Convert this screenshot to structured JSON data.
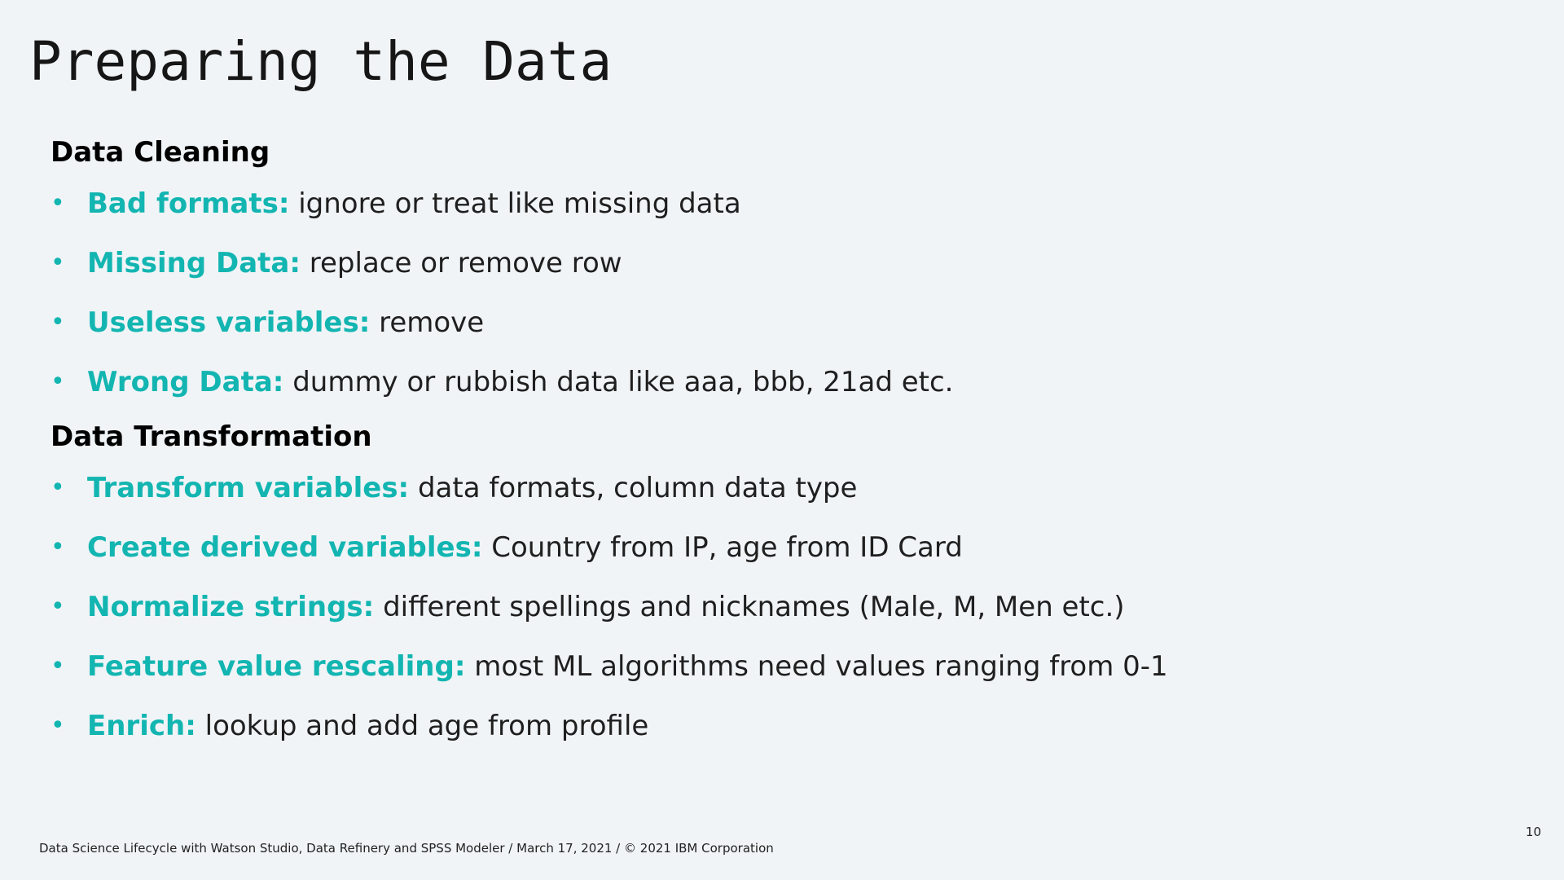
{
  "slide": {
    "title": "Preparing the Data",
    "footer": "Data Science Lifecycle with Watson Studio, Data Refinery and SPSS Modeler / March 17, 2021 / © 2021 IBM Corporation",
    "page_number": "10"
  },
  "colors": {
    "accent": "#13b5b1",
    "background": "#f0f4f7",
    "text": "#161616"
  },
  "sections": [
    {
      "heading": "Data Cleaning",
      "items": [
        {
          "term": "Bad formats:",
          "desc": "ignore or treat like missing data"
        },
        {
          "term": "Missing Data:",
          "desc": "replace or remove row"
        },
        {
          "term": "Useless variables:",
          "desc": "remove"
        },
        {
          "term": "Wrong Data:",
          "desc": "dummy or rubbish data like aaa, bbb, 21ad etc."
        }
      ]
    },
    {
      "heading": "Data Transformation",
      "items": [
        {
          "term": "Transform variables:",
          "desc": "data formats, column data type"
        },
        {
          "term": "Create derived variables:",
          "desc": "Country from IP, age from ID Card"
        },
        {
          "term": "Normalize strings:",
          "desc": "different spellings and nicknames (Male, M, Men etc.)"
        },
        {
          "term": "Feature value rescaling:",
          "desc": "most ML algorithms need values ranging from 0-1"
        },
        {
          "term": "Enrich:",
          "desc": "lookup and add age from profile"
        }
      ]
    }
  ]
}
